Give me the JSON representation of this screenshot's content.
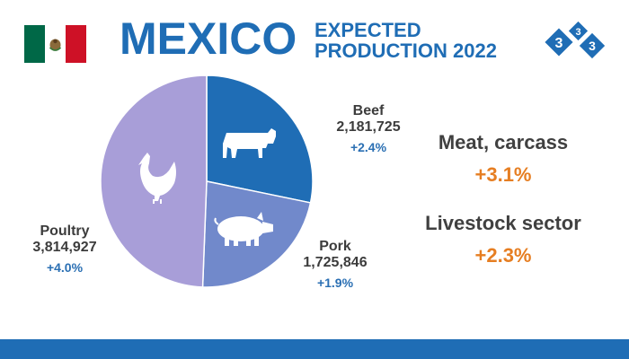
{
  "header": {
    "country": "MEXICO",
    "subtitle_line1": "EXPECTED",
    "subtitle_line2": "PRODUCTION 2022",
    "logo_digits": [
      "3",
      "3",
      "3"
    ]
  },
  "chart_data": {
    "type": "pie",
    "slices": [
      {
        "label": "Beef",
        "value": 2181725,
        "value_label": "2,181,725",
        "change": "+2.4%",
        "color": "#1f6db5",
        "icon": "cow-icon"
      },
      {
        "label": "Pork",
        "value": 1725846,
        "value_label": "1,725,846",
        "change": "+1.9%",
        "color": "#7189cb",
        "icon": "pig-icon"
      },
      {
        "label": "Poultry",
        "value": 3814927,
        "value_label": "3,814,927",
        "change": "+4.0%",
        "color": "#a89ed8",
        "icon": "chicken-icon"
      }
    ]
  },
  "stats": [
    {
      "label": "Meat, carcass",
      "value": "+3.1%"
    },
    {
      "label": "Livestock sector",
      "value": "+2.3%"
    }
  ],
  "colors": {
    "brand_blue": "#1f6db5",
    "accent_orange": "#e67e22",
    "text_dark": "#404040"
  }
}
